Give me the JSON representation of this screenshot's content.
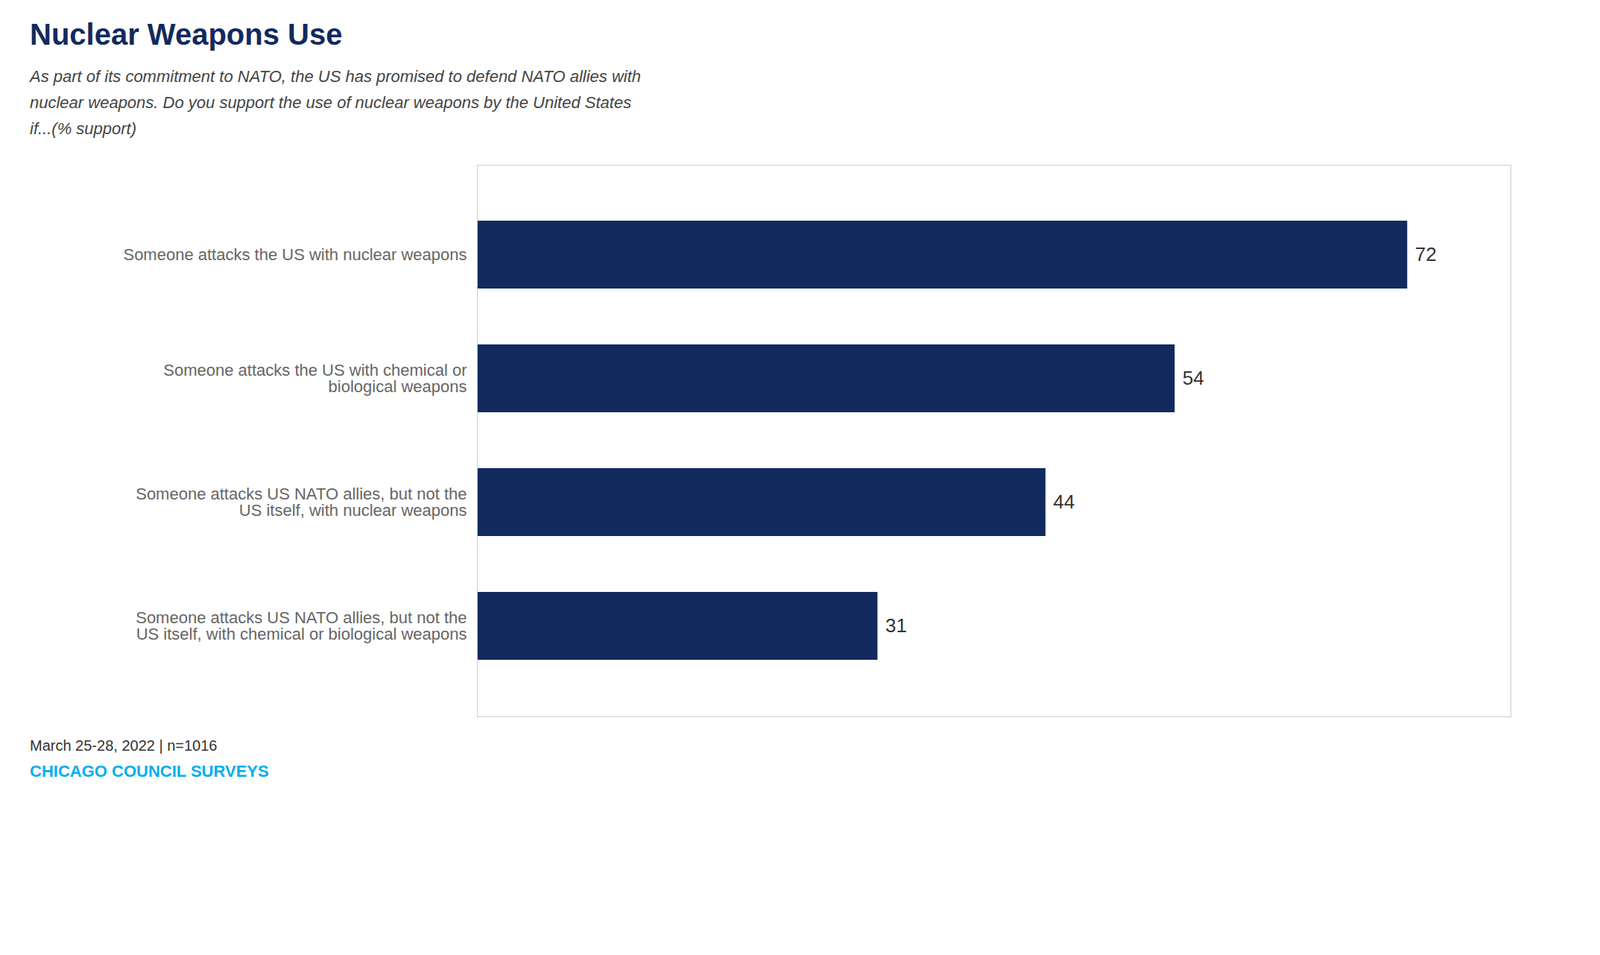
{
  "chart_data": {
    "type": "bar",
    "orientation": "horizontal",
    "title": "Nuclear Weapons Use",
    "subtitle": "As part of its commitment to NATO, the US has promised to defend NATO allies with\nnuclear weapons. Do you support the use of nuclear weapons by the United States\nif...(% support)",
    "categories": [
      "Someone attacks the US with nuclear weapons",
      "Someone attacks the US with chemical or\nbiological weapons",
      "Someone attacks US NATO allies, but not the\nUS itself, with nuclear weapons",
      "Someone attacks US NATO allies, but not the\nUS itself, with chemical or biological weapons"
    ],
    "values": [
      72,
      54,
      44,
      31
    ],
    "color": "#122a5e",
    "xlim": [
      0,
      80
    ],
    "grid": false,
    "data_labels": true,
    "tick_labels": "y",
    "annotations": [
      "March 25-28, 2022 | n=1016",
      "CHICAGO COUNCIL SURVEYS"
    ]
  }
}
